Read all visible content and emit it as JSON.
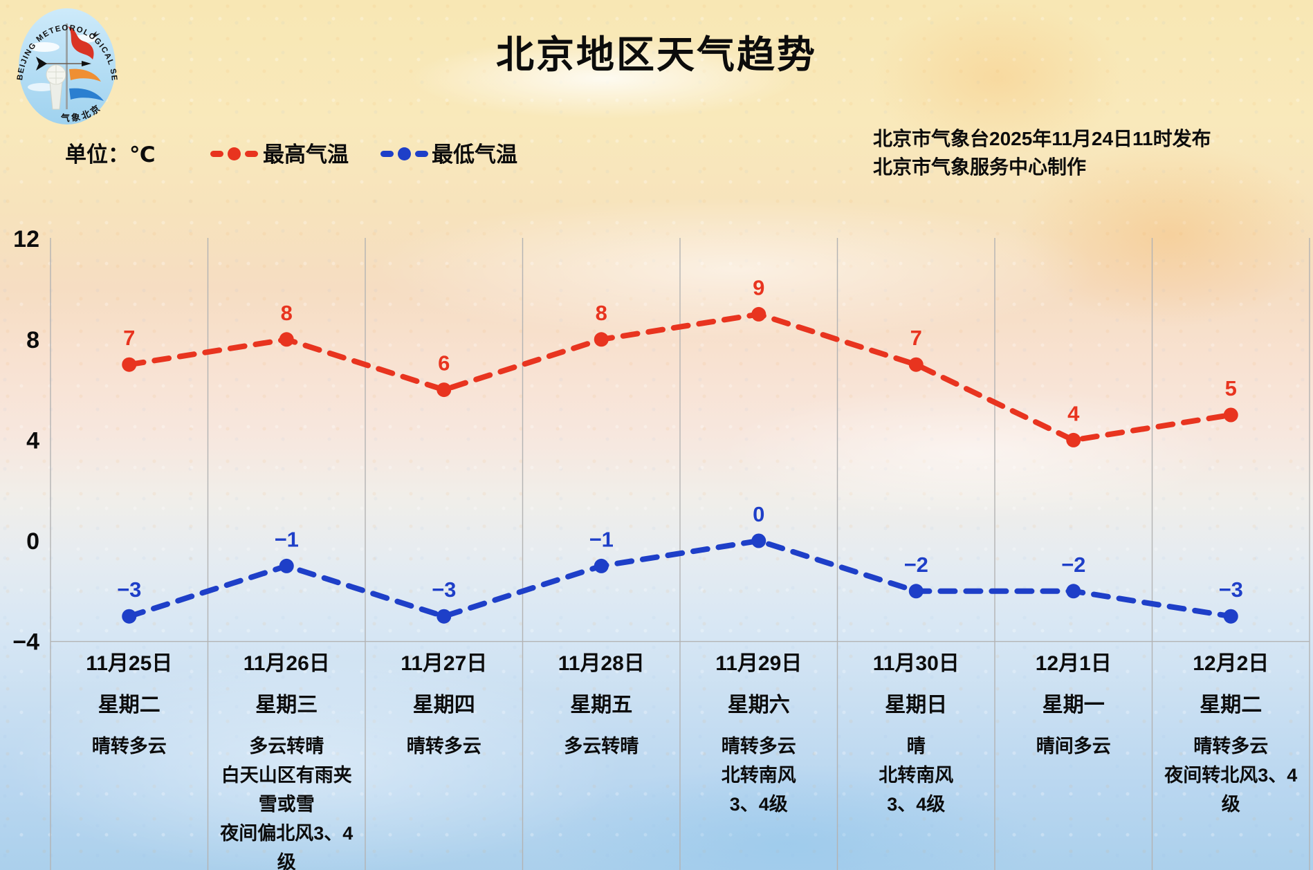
{
  "logo": {
    "arc_text": "BEIJING METEOROLOGICAL SERVICE",
    "bottom_text": "气象北京"
  },
  "title": "北京地区天气趋势",
  "legend": {
    "unit": "单位：℃"
  },
  "source": {
    "line1": "北京市气象台2025年11月24日11时发布",
    "line2": "北京市气象服务中心制作"
  },
  "chart_data": {
    "type": "line",
    "title": "北京地区天气趋势",
    "unit": "℃",
    "ylim": [
      -4,
      12
    ],
    "y_ticks": [
      12,
      8,
      4,
      0,
      -4
    ],
    "grid": "vertical column separators, horizontal baseline at -4",
    "legend_position": "top-left",
    "line_style": "dashed with point markers and value labels",
    "series": [
      {
        "name": "最高气温",
        "color": "#e8341f",
        "values": [
          7,
          8,
          6,
          8,
          9,
          7,
          4,
          5
        ]
      },
      {
        "name": "最低气温",
        "color": "#1e3fc8",
        "values": [
          -3,
          -1,
          -3,
          -1,
          0,
          -2,
          -2,
          -3
        ]
      }
    ],
    "categories": [
      {
        "date": "11月25日",
        "weekday": "星期二",
        "weather": "晴转多云"
      },
      {
        "date": "11月26日",
        "weekday": "星期三",
        "weather": "多云转晴\n白天山区有雨夹雪或雪\n夜间偏北风3、4级"
      },
      {
        "date": "11月27日",
        "weekday": "星期四",
        "weather": "晴转多云"
      },
      {
        "date": "11月28日",
        "weekday": "星期五",
        "weather": "多云转晴"
      },
      {
        "date": "11月29日",
        "weekday": "星期六",
        "weather": "晴转多云\n北转南风\n3、4级"
      },
      {
        "date": "11月30日",
        "weekday": "星期日",
        "weather": "晴\n北转南风\n3、4级"
      },
      {
        "date": "12月1日",
        "weekday": "星期一",
        "weather": "晴间多云"
      },
      {
        "date": "12月2日",
        "weekday": "星期二",
        "weather": "晴转多云\n夜间转北风3、4级"
      }
    ]
  }
}
